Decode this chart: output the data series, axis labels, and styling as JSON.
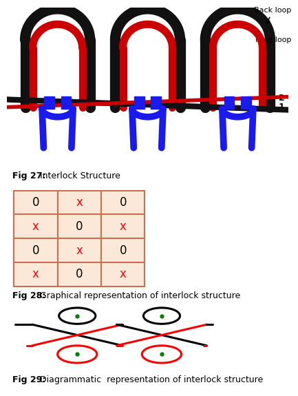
{
  "fig27_caption_bold": "Fig 27:",
  "fig27_caption_rest": " Interlock Structure",
  "fig28_caption_bold": "Fig 28:",
  "fig28_caption_rest": " Graphical representation of interlock structure",
  "fig29_caption_bold": "Fig 29:",
  "fig29_caption_rest": " Diagrammatic  representation of interlock structure",
  "grid_data": [
    [
      "0",
      "x",
      "0"
    ],
    [
      "x",
      "0",
      "x"
    ],
    [
      "0",
      "x",
      "0"
    ],
    [
      "x",
      "0",
      "x"
    ]
  ],
  "grid_colors": [
    [
      "black",
      "red",
      "black"
    ],
    [
      "red",
      "black",
      "red"
    ],
    [
      "black",
      "red",
      "black"
    ],
    [
      "red",
      "black",
      "red"
    ]
  ],
  "cell_bg": "#fce8d8",
  "grid_line_color": "#c87050",
  "back_loop_label": "Back loop",
  "face_loop_label": "Face loop",
  "needle_label_1": "1",
  "needle_label_2": "2",
  "knitted_bg": "#f2e08a",
  "caption_fontsize": 9,
  "background_color": "#ffffff",
  "black_loop": "#111111",
  "red_loop": "#cc0000",
  "blue_loop": "#1a1aee"
}
